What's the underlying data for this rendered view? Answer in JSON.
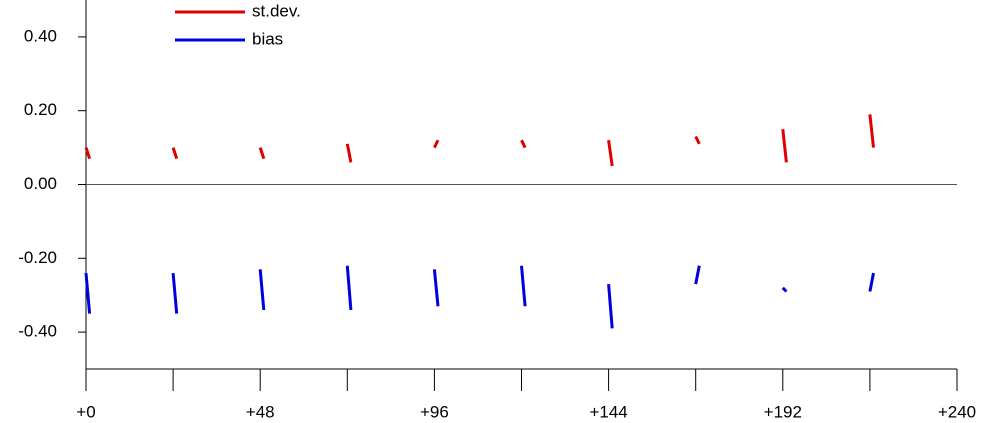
{
  "chart_data": {
    "type": "line",
    "x": [
      0,
      1,
      1,
      24,
      25,
      25,
      48,
      49,
      49,
      72,
      73,
      73,
      96,
      97,
      97,
      120,
      121,
      121,
      144,
      145,
      145,
      168,
      169,
      169,
      192,
      193,
      193,
      216,
      217
    ],
    "series": [
      {
        "name": "st.dev.",
        "color": "#e00000",
        "values": [
          0.1,
          0.07,
          null,
          0.1,
          0.07,
          null,
          0.1,
          0.07,
          null,
          0.11,
          0.06,
          null,
          0.1,
          0.12,
          null,
          0.12,
          0.1,
          null,
          0.12,
          0.05,
          null,
          0.13,
          0.11,
          null,
          0.15,
          0.06,
          null,
          0.19,
          0.1
        ]
      },
      {
        "name": "bias",
        "color": "#0000e0",
        "values": [
          -0.24,
          -0.35,
          null,
          -0.24,
          -0.35,
          null,
          -0.23,
          -0.34,
          null,
          -0.22,
          -0.34,
          null,
          -0.23,
          -0.33,
          null,
          -0.22,
          -0.33,
          null,
          -0.27,
          -0.39,
          null,
          -0.27,
          -0.22,
          null,
          -0.28,
          -0.29,
          null,
          -0.29,
          -0.24
        ]
      }
    ],
    "xlim": [
      0,
      240
    ],
    "xticks": [
      {
        "value": 0,
        "label": "+0"
      },
      {
        "value": 24,
        "label": null
      },
      {
        "value": 48,
        "label": "+48"
      },
      {
        "value": 72,
        "label": null
      },
      {
        "value": 96,
        "label": "+96"
      },
      {
        "value": 120,
        "label": null
      },
      {
        "value": 144,
        "label": "+144"
      },
      {
        "value": 168,
        "label": null
      },
      {
        "value": 192,
        "label": "+192"
      },
      {
        "value": 216,
        "label": null
      },
      {
        "value": 240,
        "label": "+240"
      }
    ],
    "ylim": [
      -0.5,
      0.5
    ],
    "yticks": [
      {
        "value": -0.4,
        "label": "-0.40"
      },
      {
        "value": -0.2,
        "label": "-0.20"
      },
      {
        "value": 0,
        "label": "0.00"
      },
      {
        "value": 0.2,
        "label": "0.20"
      },
      {
        "value": 0.4,
        "label": "0.40"
      }
    ],
    "zero_line": true
  }
}
